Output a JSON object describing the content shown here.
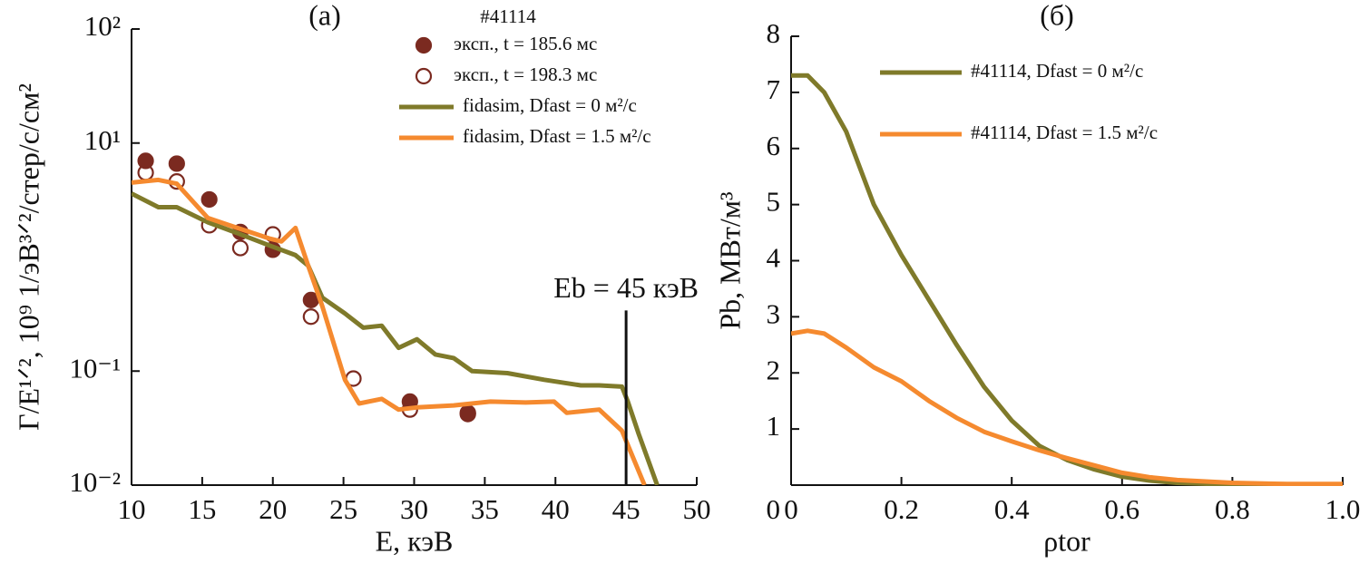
{
  "chart_data": [
    {
      "type": "line",
      "title": "(a)",
      "subtitle": "#41114",
      "xlabel": "E, кэВ",
      "ylabel": "Γ/E¹ᐟ², 10⁹ 1/эВ³ᐟ²/стер/с/см²",
      "log_y": true,
      "xlim": [
        10,
        50
      ],
      "ylim": [
        0.01,
        100
      ],
      "xticks": [
        10,
        15,
        20,
        25,
        30,
        35,
        40,
        45,
        50
      ],
      "yticks": [
        {
          "value": 0.01,
          "label": "10⁻²"
        },
        {
          "value": 0.1,
          "label": "10⁻¹"
        },
        {
          "value": 10,
          "label": "10¹"
        },
        {
          "value": 100,
          "label": "10²"
        }
      ],
      "series": [
        {
          "name": "эксп., t = 185.6 мс",
          "color": "#7b2a20",
          "marker": "filled",
          "x": [
            11,
            13.2,
            15.5,
            17.7,
            20,
            22.7,
            29.7,
            33.8
          ],
          "values": [
            6.98,
            6.6,
            3.2,
            1.66,
            1.16,
            0.42,
            0.054,
            0.043
          ]
        },
        {
          "name": "эксп., t = 198.3 мс",
          "color": "#7b2a20",
          "marker": "open",
          "x": [
            11,
            13.2,
            15.5,
            17.7,
            20,
            22.7,
            25.7,
            29.7,
            33.8
          ],
          "values": [
            5.5,
            4.6,
            1.9,
            1.2,
            1.58,
            0.3,
            0.086,
            0.046,
            0.042
          ]
        },
        {
          "name": "fidasim, Dfast = 0 м²/с",
          "color": "#7f7a2a",
          "x": [
            10,
            11.9,
            13.2,
            15.4,
            17.5,
            19.8,
            21.6,
            22.5,
            23.5,
            25.1,
            26.4,
            27.7,
            28.9,
            30.2,
            31.5,
            32.8,
            34.1,
            36.6,
            39.2,
            41.8,
            43.1,
            44.7,
            45.1,
            45.9,
            47.2
          ],
          "values": [
            3.6,
            2.74,
            2.74,
            2.02,
            1.62,
            1.26,
            1.04,
            0.84,
            0.44,
            0.32,
            0.24,
            0.25,
            0.16,
            0.19,
            0.14,
            0.13,
            0.1,
            0.096,
            0.084,
            0.075,
            0.075,
            0.073,
            0.055,
            0.028,
            0.01
          ]
        },
        {
          "name": "fidasim, Dfast = 1.5 м²/с",
          "color": "#f58a2f",
          "x": [
            10,
            11.9,
            13.2,
            15.4,
            17.5,
            19.8,
            20.6,
            21.6,
            22.5,
            23.5,
            25.1,
            26.1,
            27.7,
            28.9,
            30.2,
            32.8,
            35.4,
            37.9,
            39.9,
            40.8,
            43.1,
            44.7,
            46.3
          ],
          "values": [
            4.5,
            4.75,
            4.4,
            2.2,
            1.8,
            1.45,
            1.37,
            1.8,
            0.84,
            0.37,
            0.084,
            0.052,
            0.057,
            0.046,
            0.048,
            0.05,
            0.054,
            0.053,
            0.054,
            0.043,
            0.046,
            0.03,
            0.01
          ]
        }
      ],
      "annotations": [
        {
          "text": "Eb = 45 кэВ",
          "x": 45,
          "y": 0.34
        }
      ]
    },
    {
      "type": "line",
      "title": "(б)",
      "xlabel": "ρtor",
      "ylabel": "Pb, МВт/м³",
      "xlim": [
        0,
        1
      ],
      "ylim": [
        0,
        8
      ],
      "xticks": [
        0,
        0.2,
        0.4,
        0.6,
        0.8,
        {
          "value": 1,
          "label": "1.0"
        }
      ],
      "yticks": [
        1,
        2,
        3,
        4,
        5,
        6,
        7,
        8
      ],
      "series": [
        {
          "name": "#41114, Dfast = 0 м²/с",
          "color": "#7f7a2a",
          "x": [
            0,
            0.03,
            0.06,
            0.1,
            0.15,
            0.2,
            0.25,
            0.3,
            0.35,
            0.4,
            0.45,
            0.5,
            0.55,
            0.6,
            0.65,
            0.7,
            0.8,
            0.9,
            1
          ],
          "values": [
            7.3,
            7.3,
            7.0,
            6.3,
            5.0,
            4.1,
            3.3,
            2.5,
            1.75,
            1.15,
            0.7,
            0.45,
            0.28,
            0.15,
            0.08,
            0.04,
            0.01,
            0.01,
            0.01
          ]
        },
        {
          "name": "#41114, Dfast = 1.5 м²/с",
          "color": "#f58a2f",
          "x": [
            0,
            0.03,
            0.06,
            0.1,
            0.15,
            0.2,
            0.25,
            0.3,
            0.35,
            0.4,
            0.45,
            0.5,
            0.55,
            0.6,
            0.65,
            0.7,
            0.8,
            0.9,
            1
          ],
          "values": [
            2.7,
            2.75,
            2.7,
            2.45,
            2.1,
            1.85,
            1.5,
            1.2,
            0.95,
            0.78,
            0.62,
            0.48,
            0.35,
            0.22,
            0.14,
            0.09,
            0.04,
            0.02,
            0.02
          ]
        }
      ]
    }
  ]
}
